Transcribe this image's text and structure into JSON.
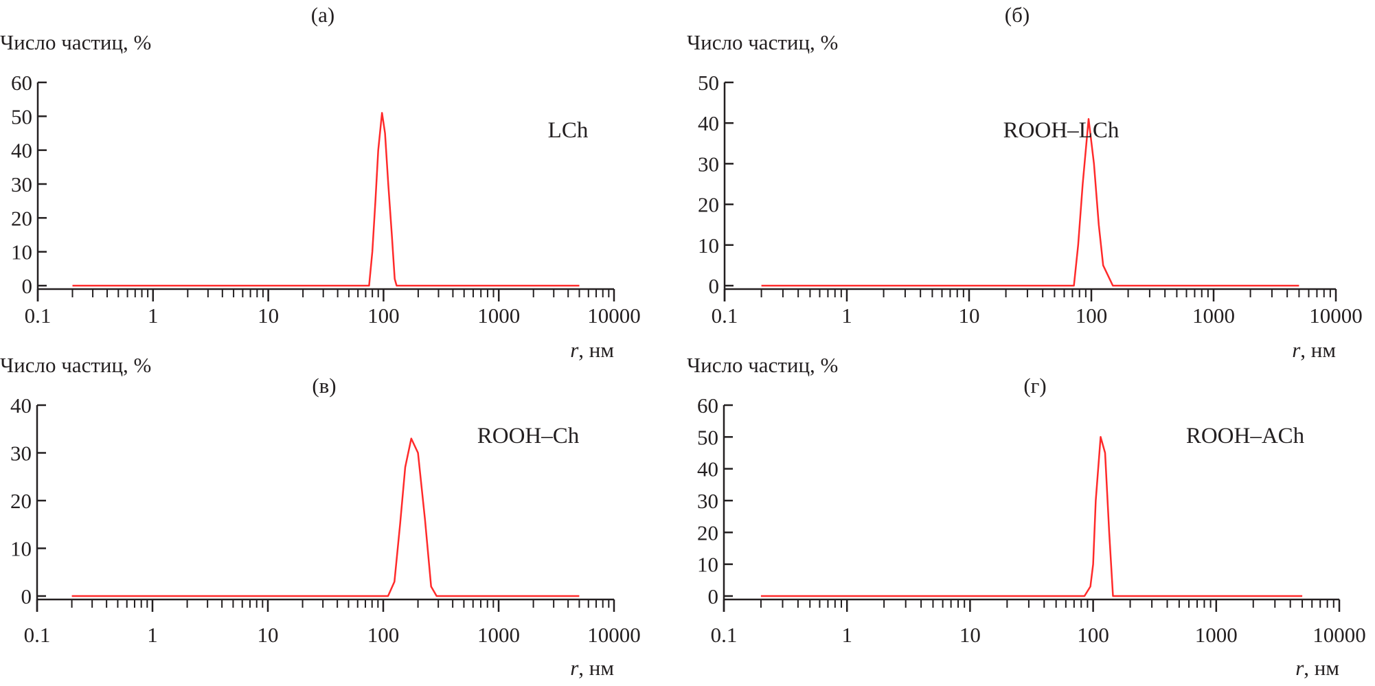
{
  "chart_data": [
    {
      "type": "line",
      "panel_label": "(а)",
      "ylabel": "Число частиц, %",
      "xlabel_var": "r",
      "xlabel_unit": ", нм",
      "x_scale": "log",
      "xlim": [
        0.1,
        10000
      ],
      "ylim": [
        0,
        60
      ],
      "x_ticks": [
        "0.1",
        "1",
        "10",
        "100",
        "1000",
        "10000"
      ],
      "y_ticks": [
        "0",
        "10",
        "20",
        "30",
        "40",
        "50",
        "60"
      ],
      "series": [
        {
          "name": "LCh",
          "color": "#ff2a2a",
          "points": [
            [
              0.2,
              0
            ],
            [
              75,
              0
            ],
            [
              80,
              10
            ],
            [
              85,
              25
            ],
            [
              90,
              40
            ],
            [
              97,
              51
            ],
            [
              103,
              45
            ],
            [
              110,
              30
            ],
            [
              118,
              15
            ],
            [
              125,
              2
            ],
            [
              130,
              0
            ],
            [
              5000,
              0
            ]
          ]
        }
      ]
    },
    {
      "type": "line",
      "panel_label": "(б)",
      "ylabel": "Число частиц, %",
      "xlabel_var": "r",
      "xlabel_unit": ", нм",
      "x_scale": "log",
      "xlim": [
        0.1,
        10000
      ],
      "ylim": [
        0,
        50
      ],
      "x_ticks": [
        "0.1",
        "1",
        "10",
        "100",
        "1000",
        "10000"
      ],
      "y_ticks": [
        "0",
        "10",
        "20",
        "30",
        "40",
        "50"
      ],
      "series": [
        {
          "name": "ROOH–LCh",
          "color": "#ff2a2a",
          "points": [
            [
              0.2,
              0
            ],
            [
              72,
              0
            ],
            [
              78,
              10
            ],
            [
              85,
              25
            ],
            [
              95,
              41
            ],
            [
              105,
              30
            ],
            [
              115,
              15
            ],
            [
              125,
              5
            ],
            [
              150,
              0
            ],
            [
              5000,
              0
            ]
          ]
        }
      ]
    },
    {
      "type": "line",
      "panel_label": "(в)",
      "ylabel": "Число частиц, %",
      "xlabel_var": "r",
      "xlabel_unit": ", нм",
      "x_scale": "log",
      "xlim": [
        0.1,
        10000
      ],
      "ylim": [
        0,
        40
      ],
      "x_ticks": [
        "0.1",
        "1",
        "10",
        "100",
        "1000",
        "10000"
      ],
      "y_ticks": [
        "0",
        "10",
        "20",
        "30",
        "40"
      ],
      "series": [
        {
          "name": "ROOH–Ch",
          "color": "#ff2a2a",
          "points": [
            [
              0.2,
              0
            ],
            [
              110,
              0
            ],
            [
              125,
              3
            ],
            [
              140,
              15
            ],
            [
              155,
              27
            ],
            [
              175,
              33
            ],
            [
              200,
              30
            ],
            [
              230,
              16
            ],
            [
              260,
              2
            ],
            [
              290,
              0
            ],
            [
              5000,
              0
            ]
          ]
        }
      ]
    },
    {
      "type": "line",
      "panel_label": "(г)",
      "ylabel": "Число частиц, %",
      "xlabel_var": "r",
      "xlabel_unit": ", нм",
      "x_scale": "log",
      "xlim": [
        0.1,
        10000
      ],
      "ylim": [
        0,
        60
      ],
      "x_ticks": [
        "0.1",
        "1",
        "10",
        "100",
        "1000",
        "10000"
      ],
      "y_ticks": [
        "0",
        "10",
        "20",
        "30",
        "40",
        "50",
        "60"
      ],
      "series": [
        {
          "name": "ROOH–ACh",
          "color": "#ff2a2a",
          "points": [
            [
              0.2,
              0
            ],
            [
              85,
              0
            ],
            [
              95,
              3
            ],
            [
              100,
              10
            ],
            [
              105,
              30
            ],
            [
              115,
              50
            ],
            [
              125,
              45
            ],
            [
              135,
              20
            ],
            [
              145,
              0
            ],
            [
              5000,
              0
            ]
          ]
        }
      ]
    }
  ]
}
